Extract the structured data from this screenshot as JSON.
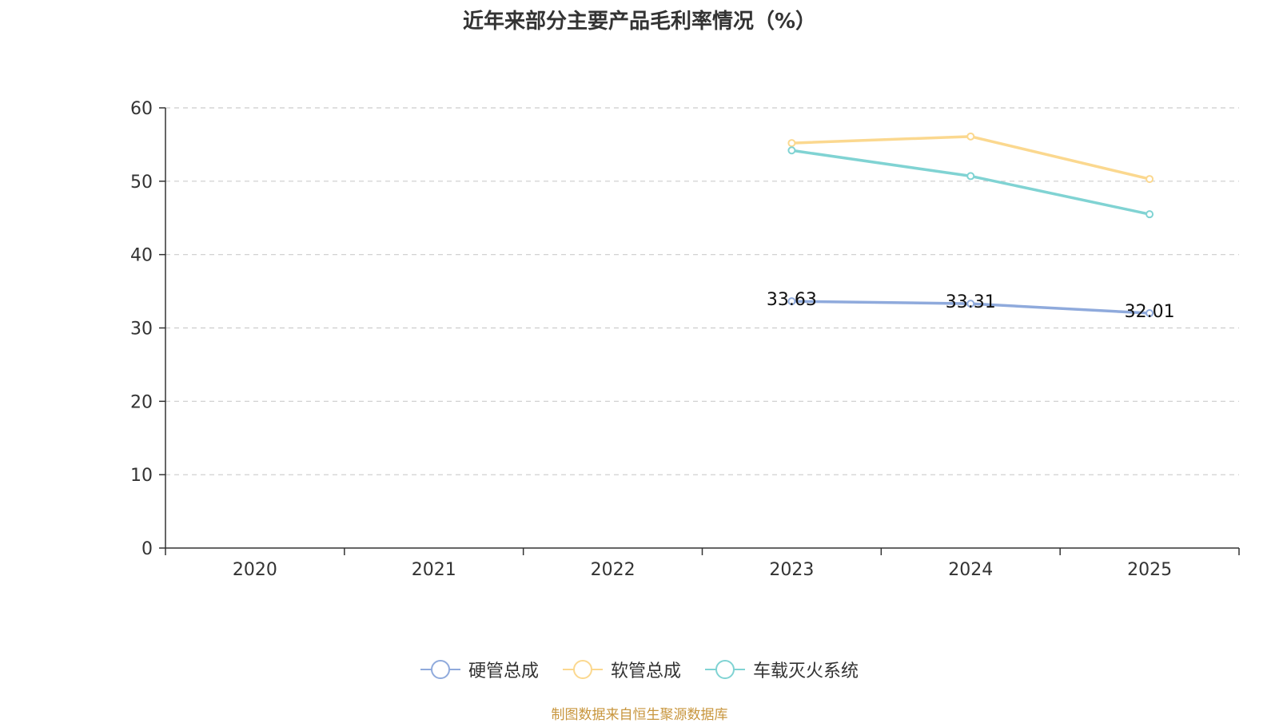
{
  "chart_data": {
    "type": "line",
    "title": "近年来部分主要产品毛利率情况（%）",
    "categories": [
      "2020",
      "2021",
      "2022",
      "2023",
      "2024",
      "2025"
    ],
    "ylim": [
      0,
      60
    ],
    "yticks": [
      0,
      10,
      20,
      30,
      40,
      50,
      60
    ],
    "grid": true,
    "legend_position": "bottom",
    "series": [
      {
        "name": "硬管总成",
        "color": "#8faadc",
        "values": [
          null,
          null,
          null,
          33.63,
          33.31,
          32.01
        ],
        "show_labels": true
      },
      {
        "name": "软管总成",
        "color": "#fbd88f",
        "values": [
          null,
          null,
          null,
          55.2,
          56.1,
          50.3
        ],
        "show_labels": false
      },
      {
        "name": "车载灭火系统",
        "color": "#80d3d3",
        "values": [
          null,
          null,
          null,
          54.2,
          50.7,
          45.5
        ],
        "show_labels": false
      }
    ]
  },
  "source": "制图数据来自恒生聚源数据库"
}
